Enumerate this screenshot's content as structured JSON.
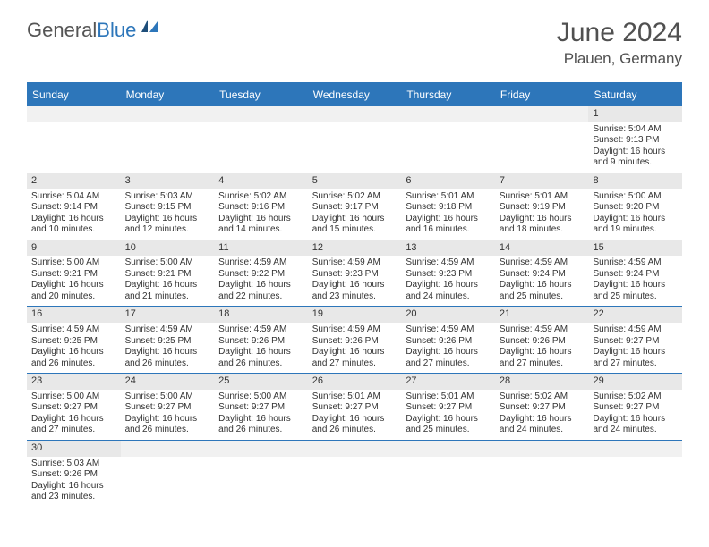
{
  "logo": {
    "main": "General",
    "accent": "Blue"
  },
  "title": "June 2024",
  "location": "Plauen, Germany",
  "day_headers": [
    "Sunday",
    "Monday",
    "Tuesday",
    "Wednesday",
    "Thursday",
    "Friday",
    "Saturday"
  ],
  "colors": {
    "header_bg": "#2d76ba",
    "header_fg": "#ffffff",
    "daynum_bg": "#e8e8e8",
    "page_bg": "#ffffff",
    "rule": "#2d76ba",
    "text": "#333333",
    "title_color": "#505050"
  },
  "weeks": [
    [
      {
        "blank": true
      },
      {
        "blank": true
      },
      {
        "blank": true
      },
      {
        "blank": true
      },
      {
        "blank": true
      },
      {
        "blank": true
      },
      {
        "day": "1",
        "sunrise": "Sunrise: 5:04 AM",
        "sunset": "Sunset: 9:13 PM",
        "daylight1": "Daylight: 16 hours",
        "daylight2": "and 9 minutes."
      }
    ],
    [
      {
        "day": "2",
        "sunrise": "Sunrise: 5:04 AM",
        "sunset": "Sunset: 9:14 PM",
        "daylight1": "Daylight: 16 hours",
        "daylight2": "and 10 minutes."
      },
      {
        "day": "3",
        "sunrise": "Sunrise: 5:03 AM",
        "sunset": "Sunset: 9:15 PM",
        "daylight1": "Daylight: 16 hours",
        "daylight2": "and 12 minutes."
      },
      {
        "day": "4",
        "sunrise": "Sunrise: 5:02 AM",
        "sunset": "Sunset: 9:16 PM",
        "daylight1": "Daylight: 16 hours",
        "daylight2": "and 14 minutes."
      },
      {
        "day": "5",
        "sunrise": "Sunrise: 5:02 AM",
        "sunset": "Sunset: 9:17 PM",
        "daylight1": "Daylight: 16 hours",
        "daylight2": "and 15 minutes."
      },
      {
        "day": "6",
        "sunrise": "Sunrise: 5:01 AM",
        "sunset": "Sunset: 9:18 PM",
        "daylight1": "Daylight: 16 hours",
        "daylight2": "and 16 minutes."
      },
      {
        "day": "7",
        "sunrise": "Sunrise: 5:01 AM",
        "sunset": "Sunset: 9:19 PM",
        "daylight1": "Daylight: 16 hours",
        "daylight2": "and 18 minutes."
      },
      {
        "day": "8",
        "sunrise": "Sunrise: 5:00 AM",
        "sunset": "Sunset: 9:20 PM",
        "daylight1": "Daylight: 16 hours",
        "daylight2": "and 19 minutes."
      }
    ],
    [
      {
        "day": "9",
        "sunrise": "Sunrise: 5:00 AM",
        "sunset": "Sunset: 9:21 PM",
        "daylight1": "Daylight: 16 hours",
        "daylight2": "and 20 minutes."
      },
      {
        "day": "10",
        "sunrise": "Sunrise: 5:00 AM",
        "sunset": "Sunset: 9:21 PM",
        "daylight1": "Daylight: 16 hours",
        "daylight2": "and 21 minutes."
      },
      {
        "day": "11",
        "sunrise": "Sunrise: 4:59 AM",
        "sunset": "Sunset: 9:22 PM",
        "daylight1": "Daylight: 16 hours",
        "daylight2": "and 22 minutes."
      },
      {
        "day": "12",
        "sunrise": "Sunrise: 4:59 AM",
        "sunset": "Sunset: 9:23 PM",
        "daylight1": "Daylight: 16 hours",
        "daylight2": "and 23 minutes."
      },
      {
        "day": "13",
        "sunrise": "Sunrise: 4:59 AM",
        "sunset": "Sunset: 9:23 PM",
        "daylight1": "Daylight: 16 hours",
        "daylight2": "and 24 minutes."
      },
      {
        "day": "14",
        "sunrise": "Sunrise: 4:59 AM",
        "sunset": "Sunset: 9:24 PM",
        "daylight1": "Daylight: 16 hours",
        "daylight2": "and 25 minutes."
      },
      {
        "day": "15",
        "sunrise": "Sunrise: 4:59 AM",
        "sunset": "Sunset: 9:24 PM",
        "daylight1": "Daylight: 16 hours",
        "daylight2": "and 25 minutes."
      }
    ],
    [
      {
        "day": "16",
        "sunrise": "Sunrise: 4:59 AM",
        "sunset": "Sunset: 9:25 PM",
        "daylight1": "Daylight: 16 hours",
        "daylight2": "and 26 minutes."
      },
      {
        "day": "17",
        "sunrise": "Sunrise: 4:59 AM",
        "sunset": "Sunset: 9:25 PM",
        "daylight1": "Daylight: 16 hours",
        "daylight2": "and 26 minutes."
      },
      {
        "day": "18",
        "sunrise": "Sunrise: 4:59 AM",
        "sunset": "Sunset: 9:26 PM",
        "daylight1": "Daylight: 16 hours",
        "daylight2": "and 26 minutes."
      },
      {
        "day": "19",
        "sunrise": "Sunrise: 4:59 AM",
        "sunset": "Sunset: 9:26 PM",
        "daylight1": "Daylight: 16 hours",
        "daylight2": "and 27 minutes."
      },
      {
        "day": "20",
        "sunrise": "Sunrise: 4:59 AM",
        "sunset": "Sunset: 9:26 PM",
        "daylight1": "Daylight: 16 hours",
        "daylight2": "and 27 minutes."
      },
      {
        "day": "21",
        "sunrise": "Sunrise: 4:59 AM",
        "sunset": "Sunset: 9:26 PM",
        "daylight1": "Daylight: 16 hours",
        "daylight2": "and 27 minutes."
      },
      {
        "day": "22",
        "sunrise": "Sunrise: 4:59 AM",
        "sunset": "Sunset: 9:27 PM",
        "daylight1": "Daylight: 16 hours",
        "daylight2": "and 27 minutes."
      }
    ],
    [
      {
        "day": "23",
        "sunrise": "Sunrise: 5:00 AM",
        "sunset": "Sunset: 9:27 PM",
        "daylight1": "Daylight: 16 hours",
        "daylight2": "and 27 minutes."
      },
      {
        "day": "24",
        "sunrise": "Sunrise: 5:00 AM",
        "sunset": "Sunset: 9:27 PM",
        "daylight1": "Daylight: 16 hours",
        "daylight2": "and 26 minutes."
      },
      {
        "day": "25",
        "sunrise": "Sunrise: 5:00 AM",
        "sunset": "Sunset: 9:27 PM",
        "daylight1": "Daylight: 16 hours",
        "daylight2": "and 26 minutes."
      },
      {
        "day": "26",
        "sunrise": "Sunrise: 5:01 AM",
        "sunset": "Sunset: 9:27 PM",
        "daylight1": "Daylight: 16 hours",
        "daylight2": "and 26 minutes."
      },
      {
        "day": "27",
        "sunrise": "Sunrise: 5:01 AM",
        "sunset": "Sunset: 9:27 PM",
        "daylight1": "Daylight: 16 hours",
        "daylight2": "and 25 minutes."
      },
      {
        "day": "28",
        "sunrise": "Sunrise: 5:02 AM",
        "sunset": "Sunset: 9:27 PM",
        "daylight1": "Daylight: 16 hours",
        "daylight2": "and 24 minutes."
      },
      {
        "day": "29",
        "sunrise": "Sunrise: 5:02 AM",
        "sunset": "Sunset: 9:27 PM",
        "daylight1": "Daylight: 16 hours",
        "daylight2": "and 24 minutes."
      }
    ],
    [
      {
        "day": "30",
        "sunrise": "Sunrise: 5:03 AM",
        "sunset": "Sunset: 9:26 PM",
        "daylight1": "Daylight: 16 hours",
        "daylight2": "and 23 minutes."
      },
      {
        "blank": true
      },
      {
        "blank": true
      },
      {
        "blank": true
      },
      {
        "blank": true
      },
      {
        "blank": true
      },
      {
        "blank": true
      }
    ]
  ]
}
